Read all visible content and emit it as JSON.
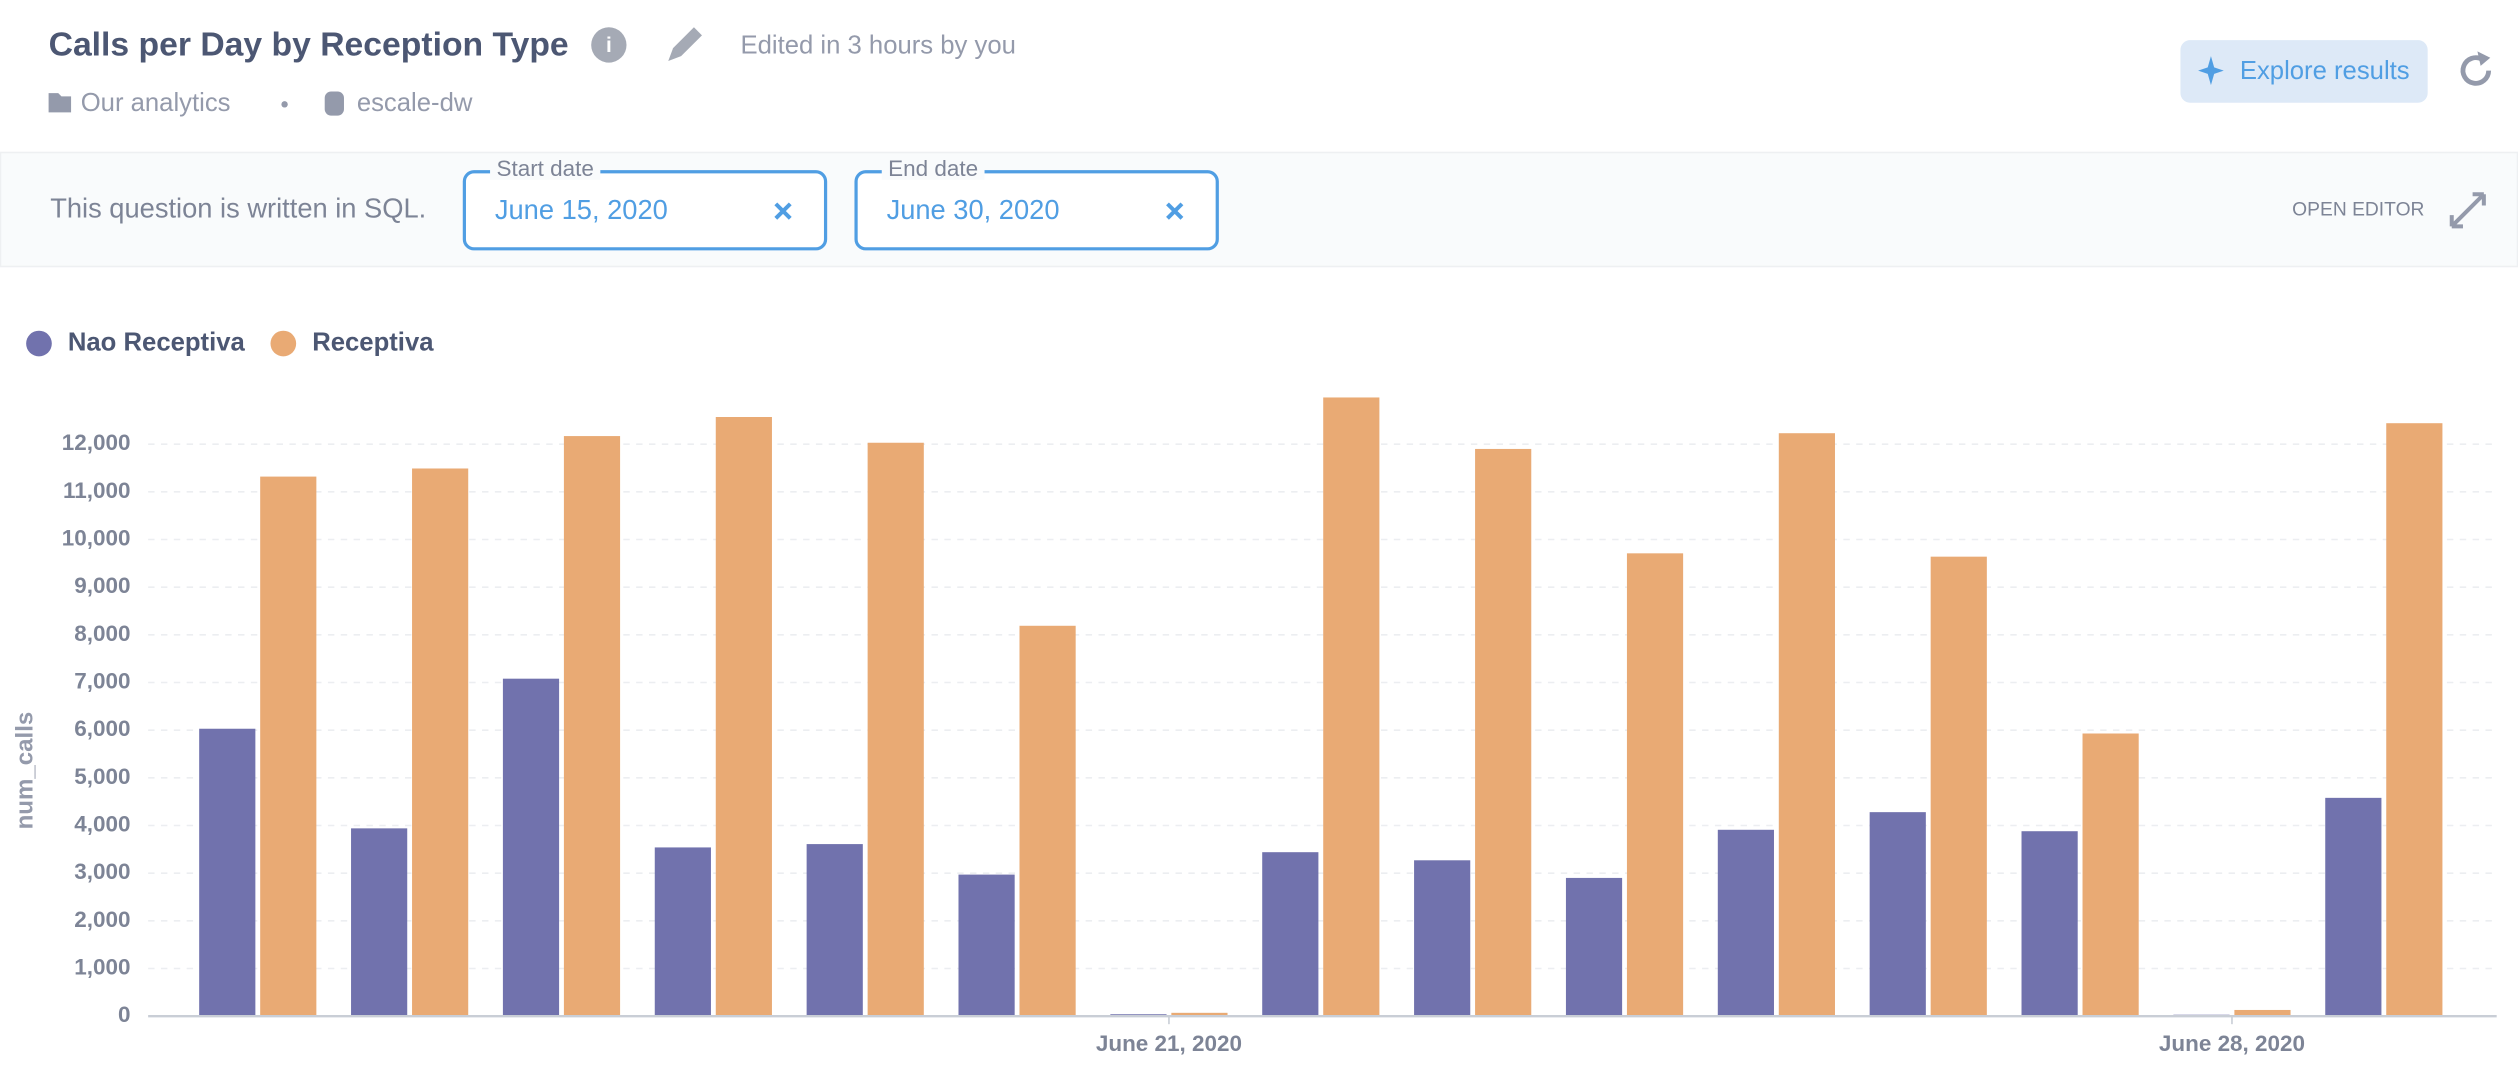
{
  "header": {
    "title": "Calls per Day by Reception Type",
    "edited": "Edited in 3 hours by you",
    "collection": "Our analytics",
    "database": "escale-dw",
    "explore_button": "Explore results"
  },
  "filter_bar": {
    "note": "This question is written in SQL.",
    "filters": [
      {
        "label": "Start date",
        "value": "June 15, 2020"
      },
      {
        "label": "End date",
        "value": "June 30, 2020"
      }
    ],
    "open_editor": "OPEN EDITOR"
  },
  "chart_data": {
    "type": "bar",
    "y_label": "num_calls",
    "categories": [
      null,
      null,
      null,
      null,
      null,
      null,
      "June 21, 2020",
      null,
      null,
      null,
      null,
      null,
      null,
      "June 28, 2020",
      null
    ],
    "series": [
      {
        "name": "Nao Receptiva",
        "color": "#7172ad",
        "values": [
          6030,
          3940,
          7080,
          3540,
          3610,
          2970,
          40,
          3440,
          3270,
          2900,
          3910,
          4280,
          3880,
          30,
          4580
        ]
      },
      {
        "name": "Receptiva",
        "color": "#e9aa74",
        "values": [
          11320,
          11490,
          12170,
          12570,
          12030,
          8190,
          70,
          12980,
          11900,
          9710,
          12230,
          9640,
          5930,
          130,
          12440
        ]
      }
    ],
    "ylim": [
      0,
      13000
    ],
    "yticks": [
      0,
      {
        "value": 1000,
        "label": "1,000"
      },
      {
        "value": 2000,
        "label": "2,000"
      },
      {
        "value": 3000,
        "label": "3,000"
      },
      {
        "value": 4000,
        "label": "4,000"
      },
      {
        "value": 5000,
        "label": "5,000"
      },
      {
        "value": 6000,
        "label": "6,000"
      },
      {
        "value": 7000,
        "label": "7,000"
      },
      {
        "value": 8000,
        "label": "8,000"
      },
      {
        "value": 9000,
        "label": "9,000"
      },
      {
        "value": 10000,
        "label": "10,000"
      },
      {
        "value": 11000,
        "label": "11,000"
      },
      {
        "value": 12000,
        "label": "12,000"
      }
    ],
    "grid": true,
    "legend": "top-left"
  }
}
